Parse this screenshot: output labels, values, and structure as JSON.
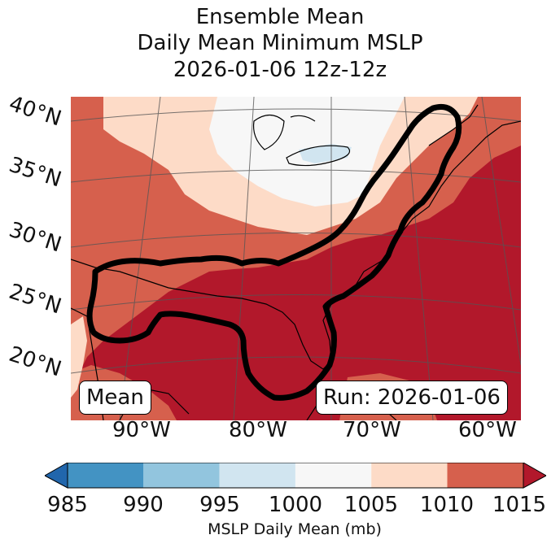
{
  "title": {
    "line1": "Ensemble Mean",
    "line2": "Daily Mean Minimum MSLP",
    "line3": "2026-01-06 12z-12z"
  },
  "map": {
    "lat_labels": [
      "40°N",
      "35°N",
      "30°N",
      "25°N",
      "20°N"
    ],
    "lon_labels": [
      "90°W",
      "80°W",
      "70°W",
      "60°W"
    ],
    "mean_box": "Mean",
    "run_box": "Run: 2026-01-06",
    "field_description": "MSLP shading over eastern North America, Gulf of Mexico and western Atlantic with black outline contour"
  },
  "colorbar": {
    "ticks": [
      "985",
      "990",
      "995",
      "1000",
      "1005",
      "1010",
      "1015"
    ],
    "label": "MSLP Daily Mean (mb)",
    "colors": [
      "#2166ac",
      "#4393c3",
      "#92c5de",
      "#d1e5f0",
      "#f7f7f7",
      "#fddbc7",
      "#d6604d",
      "#b2182b"
    ]
  }
}
